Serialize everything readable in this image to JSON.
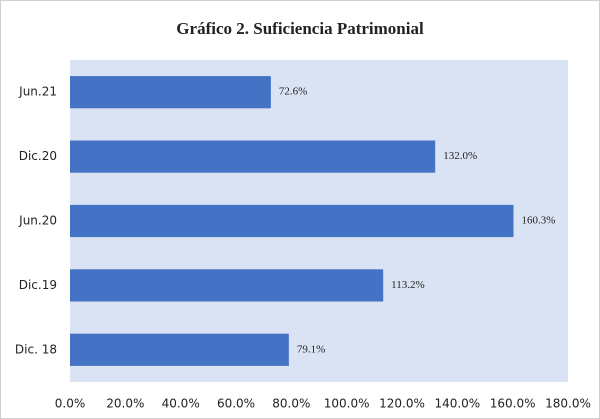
{
  "chart_data": {
    "type": "bar",
    "orientation": "horizontal",
    "title": "Gráfico 2. Suficiencia Patrimonial",
    "categories": [
      "Jun.21",
      "Dic.20",
      "Jun.20",
      "Dic.19",
      "Dic. 18"
    ],
    "values": [
      72.6,
      132.0,
      160.3,
      113.2,
      79.1
    ],
    "value_labels": [
      "72.6%",
      "132.0%",
      "160.3%",
      "113.2%",
      "79.1%"
    ],
    "color": "#4472c4",
    "xlim": [
      0,
      180
    ],
    "xticks": [
      {
        "value": 0,
        "label": "0.0%"
      },
      {
        "value": 20,
        "label": "20.0%"
      },
      {
        "value": 40,
        "label": "40.0%"
      },
      {
        "value": 60,
        "label": "60.0%"
      },
      {
        "value": 80,
        "label": "80.0%"
      },
      {
        "value": 100,
        "label": "100.0%"
      },
      {
        "value": 120,
        "label": "120.0%"
      },
      {
        "value": 140,
        "label": "140.0%"
      },
      {
        "value": 160,
        "label": "160.0%"
      },
      {
        "value": 180,
        "label": "180.0%"
      }
    ],
    "grid": false
  }
}
